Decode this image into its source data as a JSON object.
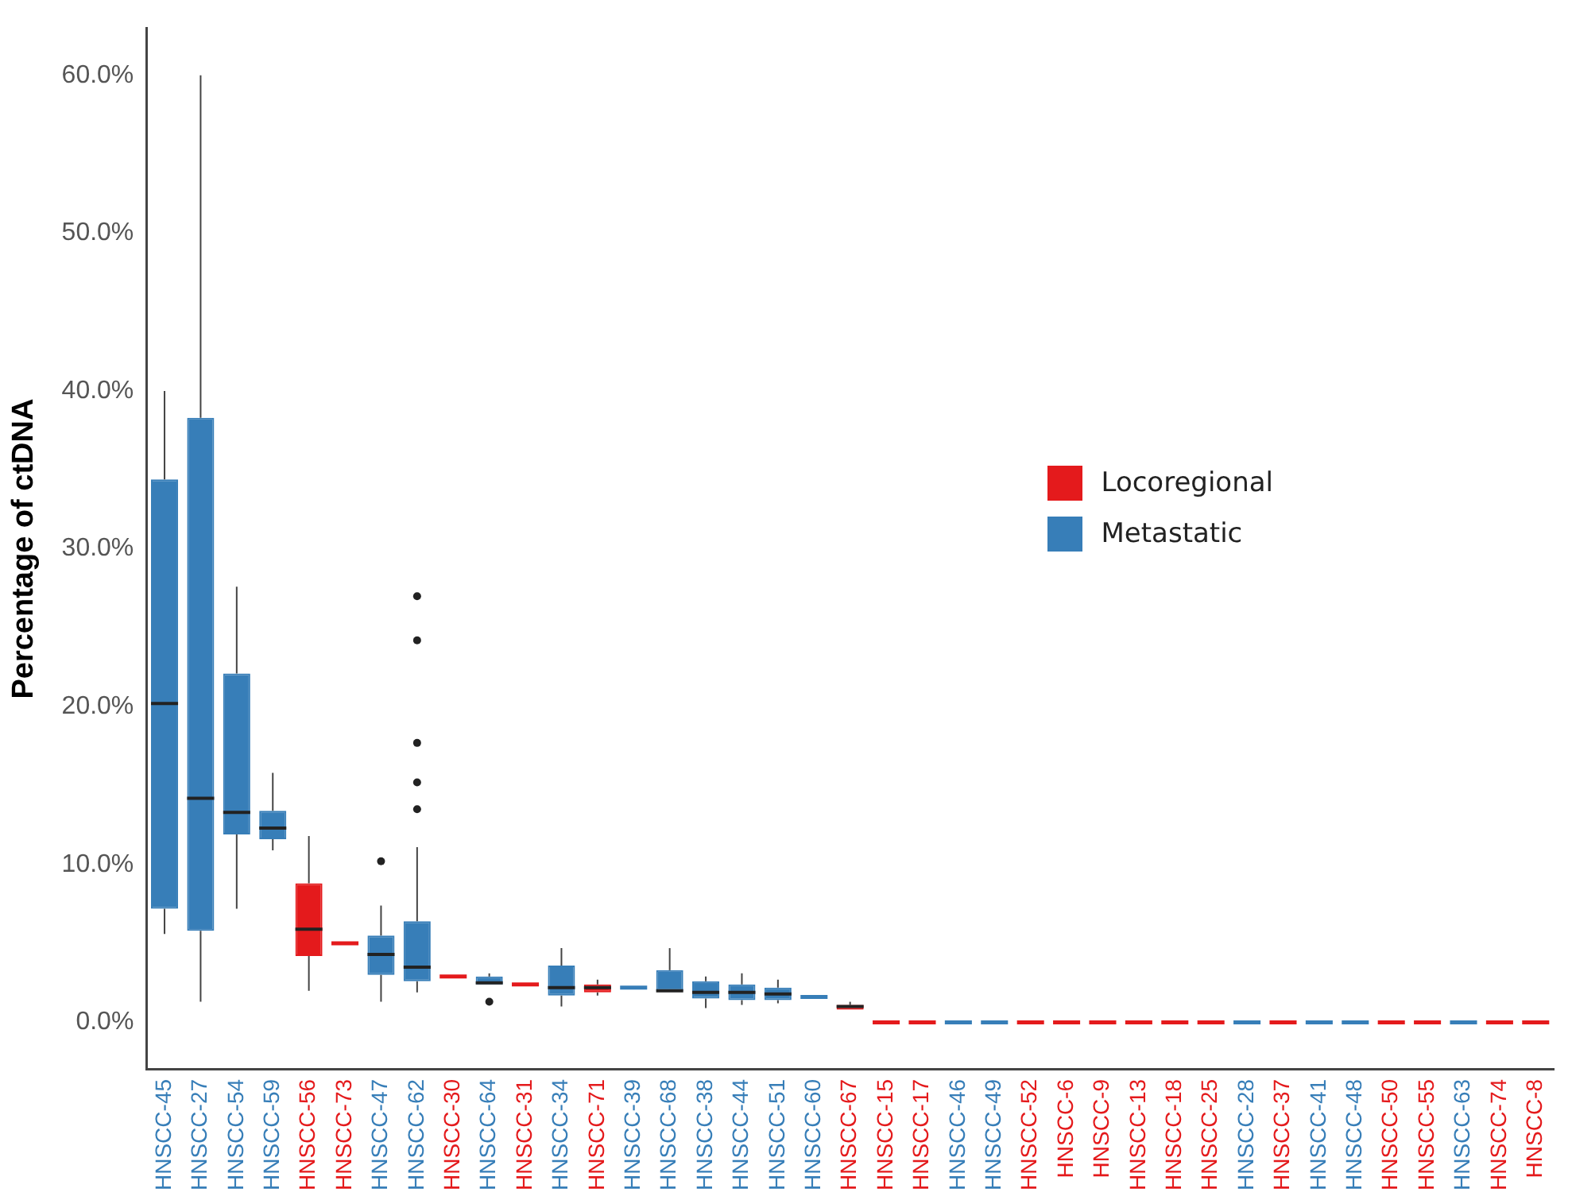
{
  "chart_data": {
    "type": "box",
    "ylabel": "Percentage of ctDNA",
    "categories": [
      "HNSCC-45",
      "HNSCC-27",
      "HNSCC-54",
      "HNSCC-59",
      "HNSCC-56",
      "HNSCC-73",
      "HNSCC-47",
      "HNSCC-62",
      "HNSCC-30",
      "HNSCC-64",
      "HNSCC-31",
      "HNSCC-34",
      "HNSCC-71",
      "HNSCC-39",
      "HNSCC-68",
      "HNSCC-38",
      "HNSCC-44",
      "HNSCC-51",
      "HNSCC-60",
      "HNSCC-67",
      "HNSCC-15",
      "HNSCC-17",
      "HNSCC-46",
      "HNSCC-49",
      "HNSCC-52",
      "HNSCC-6",
      "HNSCC-9",
      "HNSCC-13",
      "HNSCC-18",
      "HNSCC-25",
      "HNSCC-28",
      "HNSCC-37",
      "HNSCC-41",
      "HNSCC-48",
      "HNSCC-50",
      "HNSCC-55",
      "HNSCC-63",
      "HNSCC-74",
      "HNSCC-8"
    ],
    "series": [
      {
        "name": "Locoregional",
        "color": "#e41a1c",
        "boxes": [
          null,
          null,
          null,
          null,
          {
            "low": 2.0,
            "q1": 4.2,
            "median": 5.9,
            "q3": 8.8,
            "high": 11.8
          },
          {
            "low": 5.0,
            "q1": 5.0,
            "median": 5.0,
            "q3": 5.0,
            "high": 5.0
          },
          null,
          null,
          {
            "low": 2.9,
            "q1": 2.9,
            "median": 2.9,
            "q3": 2.9,
            "high": 2.9
          },
          null,
          {
            "low": 2.4,
            "q1": 2.4,
            "median": 2.4,
            "q3": 2.4,
            "high": 2.4
          },
          null,
          {
            "low": 1.7,
            "q1": 1.9,
            "median": 2.2,
            "q3": 2.4,
            "high": 2.7
          },
          null,
          null,
          null,
          null,
          null,
          null,
          {
            "low": 0.8,
            "q1": 0.8,
            "median": 1.0,
            "q3": 1.1,
            "high": 1.3
          },
          {
            "low": 0,
            "q1": 0,
            "median": 0,
            "q3": 0,
            "high": 0
          },
          {
            "low": 0,
            "q1": 0,
            "median": 0,
            "q3": 0,
            "high": 0
          },
          null,
          null,
          {
            "low": 0,
            "q1": 0,
            "median": 0,
            "q3": 0,
            "high": 0
          },
          {
            "low": 0,
            "q1": 0,
            "median": 0,
            "q3": 0,
            "high": 0
          },
          {
            "low": 0,
            "q1": 0,
            "median": 0,
            "q3": 0,
            "high": 0
          },
          {
            "low": 0,
            "q1": 0,
            "median": 0,
            "q3": 0,
            "high": 0
          },
          {
            "low": 0,
            "q1": 0,
            "median": 0,
            "q3": 0,
            "high": 0
          },
          {
            "low": 0,
            "q1": 0,
            "median": 0,
            "q3": 0,
            "high": 0
          },
          null,
          {
            "low": 0,
            "q1": 0,
            "median": 0,
            "q3": 0,
            "high": 0
          },
          null,
          null,
          {
            "low": 0,
            "q1": 0,
            "median": 0,
            "q3": 0,
            "high": 0
          },
          {
            "low": 0,
            "q1": 0,
            "median": 0,
            "q3": 0,
            "high": 0
          },
          null,
          {
            "low": 0,
            "q1": 0,
            "median": 0,
            "q3": 0,
            "high": 0
          },
          {
            "low": 0,
            "q1": 0,
            "median": 0,
            "q3": 0,
            "high": 0
          }
        ]
      },
      {
        "name": "Metastatic",
        "color": "#377eb8",
        "boxes": [
          {
            "low": 5.6,
            "q1": 7.2,
            "median": 20.2,
            "q3": 34.4,
            "high": 40.0
          },
          {
            "low": 1.3,
            "q1": 5.8,
            "median": 14.2,
            "q3": 38.3,
            "high": 60.0
          },
          {
            "low": 7.2,
            "q1": 11.9,
            "median": 13.3,
            "q3": 22.1,
            "high": 27.6
          },
          {
            "low": 10.9,
            "q1": 11.6,
            "median": 12.3,
            "q3": 13.4,
            "high": 15.8
          },
          null,
          null,
          {
            "low": 1.3,
            "q1": 3.0,
            "median": 4.3,
            "q3": 5.5,
            "high": 7.4,
            "outliers": [
              10.2
            ]
          },
          {
            "low": 1.9,
            "q1": 2.6,
            "median": 3.5,
            "q3": 6.4,
            "high": 11.1,
            "outliers": [
              13.5,
              15.2,
              17.7,
              24.2,
              27.0
            ]
          },
          null,
          {
            "low": 2.4,
            "q1": 2.4,
            "median": 2.5,
            "q3": 2.9,
            "high": 3.1,
            "outliers": [
              1.3
            ]
          },
          null,
          {
            "low": 1.0,
            "q1": 1.7,
            "median": 2.2,
            "q3": 3.6,
            "high": 4.7
          },
          null,
          {
            "low": 2.2,
            "q1": 2.2,
            "median": 2.2,
            "q3": 2.2,
            "high": 2.2
          },
          {
            "low": 2.0,
            "q1": 2.0,
            "median": 2.0,
            "q3": 3.3,
            "high": 4.7
          },
          {
            "low": 0.9,
            "q1": 1.5,
            "median": 1.9,
            "q3": 2.6,
            "high": 2.9
          },
          {
            "low": 1.1,
            "q1": 1.4,
            "median": 1.9,
            "q3": 2.4,
            "high": 3.1
          },
          {
            "low": 1.2,
            "q1": 1.4,
            "median": 1.8,
            "q3": 2.2,
            "high": 2.7
          },
          {
            "low": 1.6,
            "q1": 1.6,
            "median": 1.6,
            "q3": 1.6,
            "high": 1.6
          },
          null,
          null,
          null,
          {
            "low": 0,
            "q1": 0,
            "median": 0,
            "q3": 0,
            "high": 0
          },
          {
            "low": 0,
            "q1": 0,
            "median": 0,
            "q3": 0,
            "high": 0
          },
          null,
          null,
          null,
          null,
          null,
          null,
          {
            "low": 0,
            "q1": 0,
            "median": 0,
            "q3": 0,
            "high": 0
          },
          null,
          {
            "low": 0,
            "q1": 0,
            "median": 0,
            "q3": 0,
            "high": 0
          },
          {
            "low": 0,
            "q1": 0,
            "median": 0,
            "q3": 0,
            "high": 0
          },
          null,
          null,
          {
            "low": 0,
            "q1": 0,
            "median": 0,
            "q3": 0,
            "high": 0
          },
          null,
          null
        ]
      }
    ],
    "ylim": [
      -3,
      63
    ],
    "yticks": [
      {
        "value": 0,
        "label": "0.0%"
      },
      {
        "value": 10,
        "label": "10.0%"
      },
      {
        "value": 20,
        "label": "20.0%"
      },
      {
        "value": 30,
        "label": "30.0%"
      },
      {
        "value": 40,
        "label": "40.0%"
      },
      {
        "value": 50,
        "label": "50.0%"
      },
      {
        "value": 60,
        "label": "60.0%"
      }
    ],
    "grid": false,
    "legend": "right"
  }
}
